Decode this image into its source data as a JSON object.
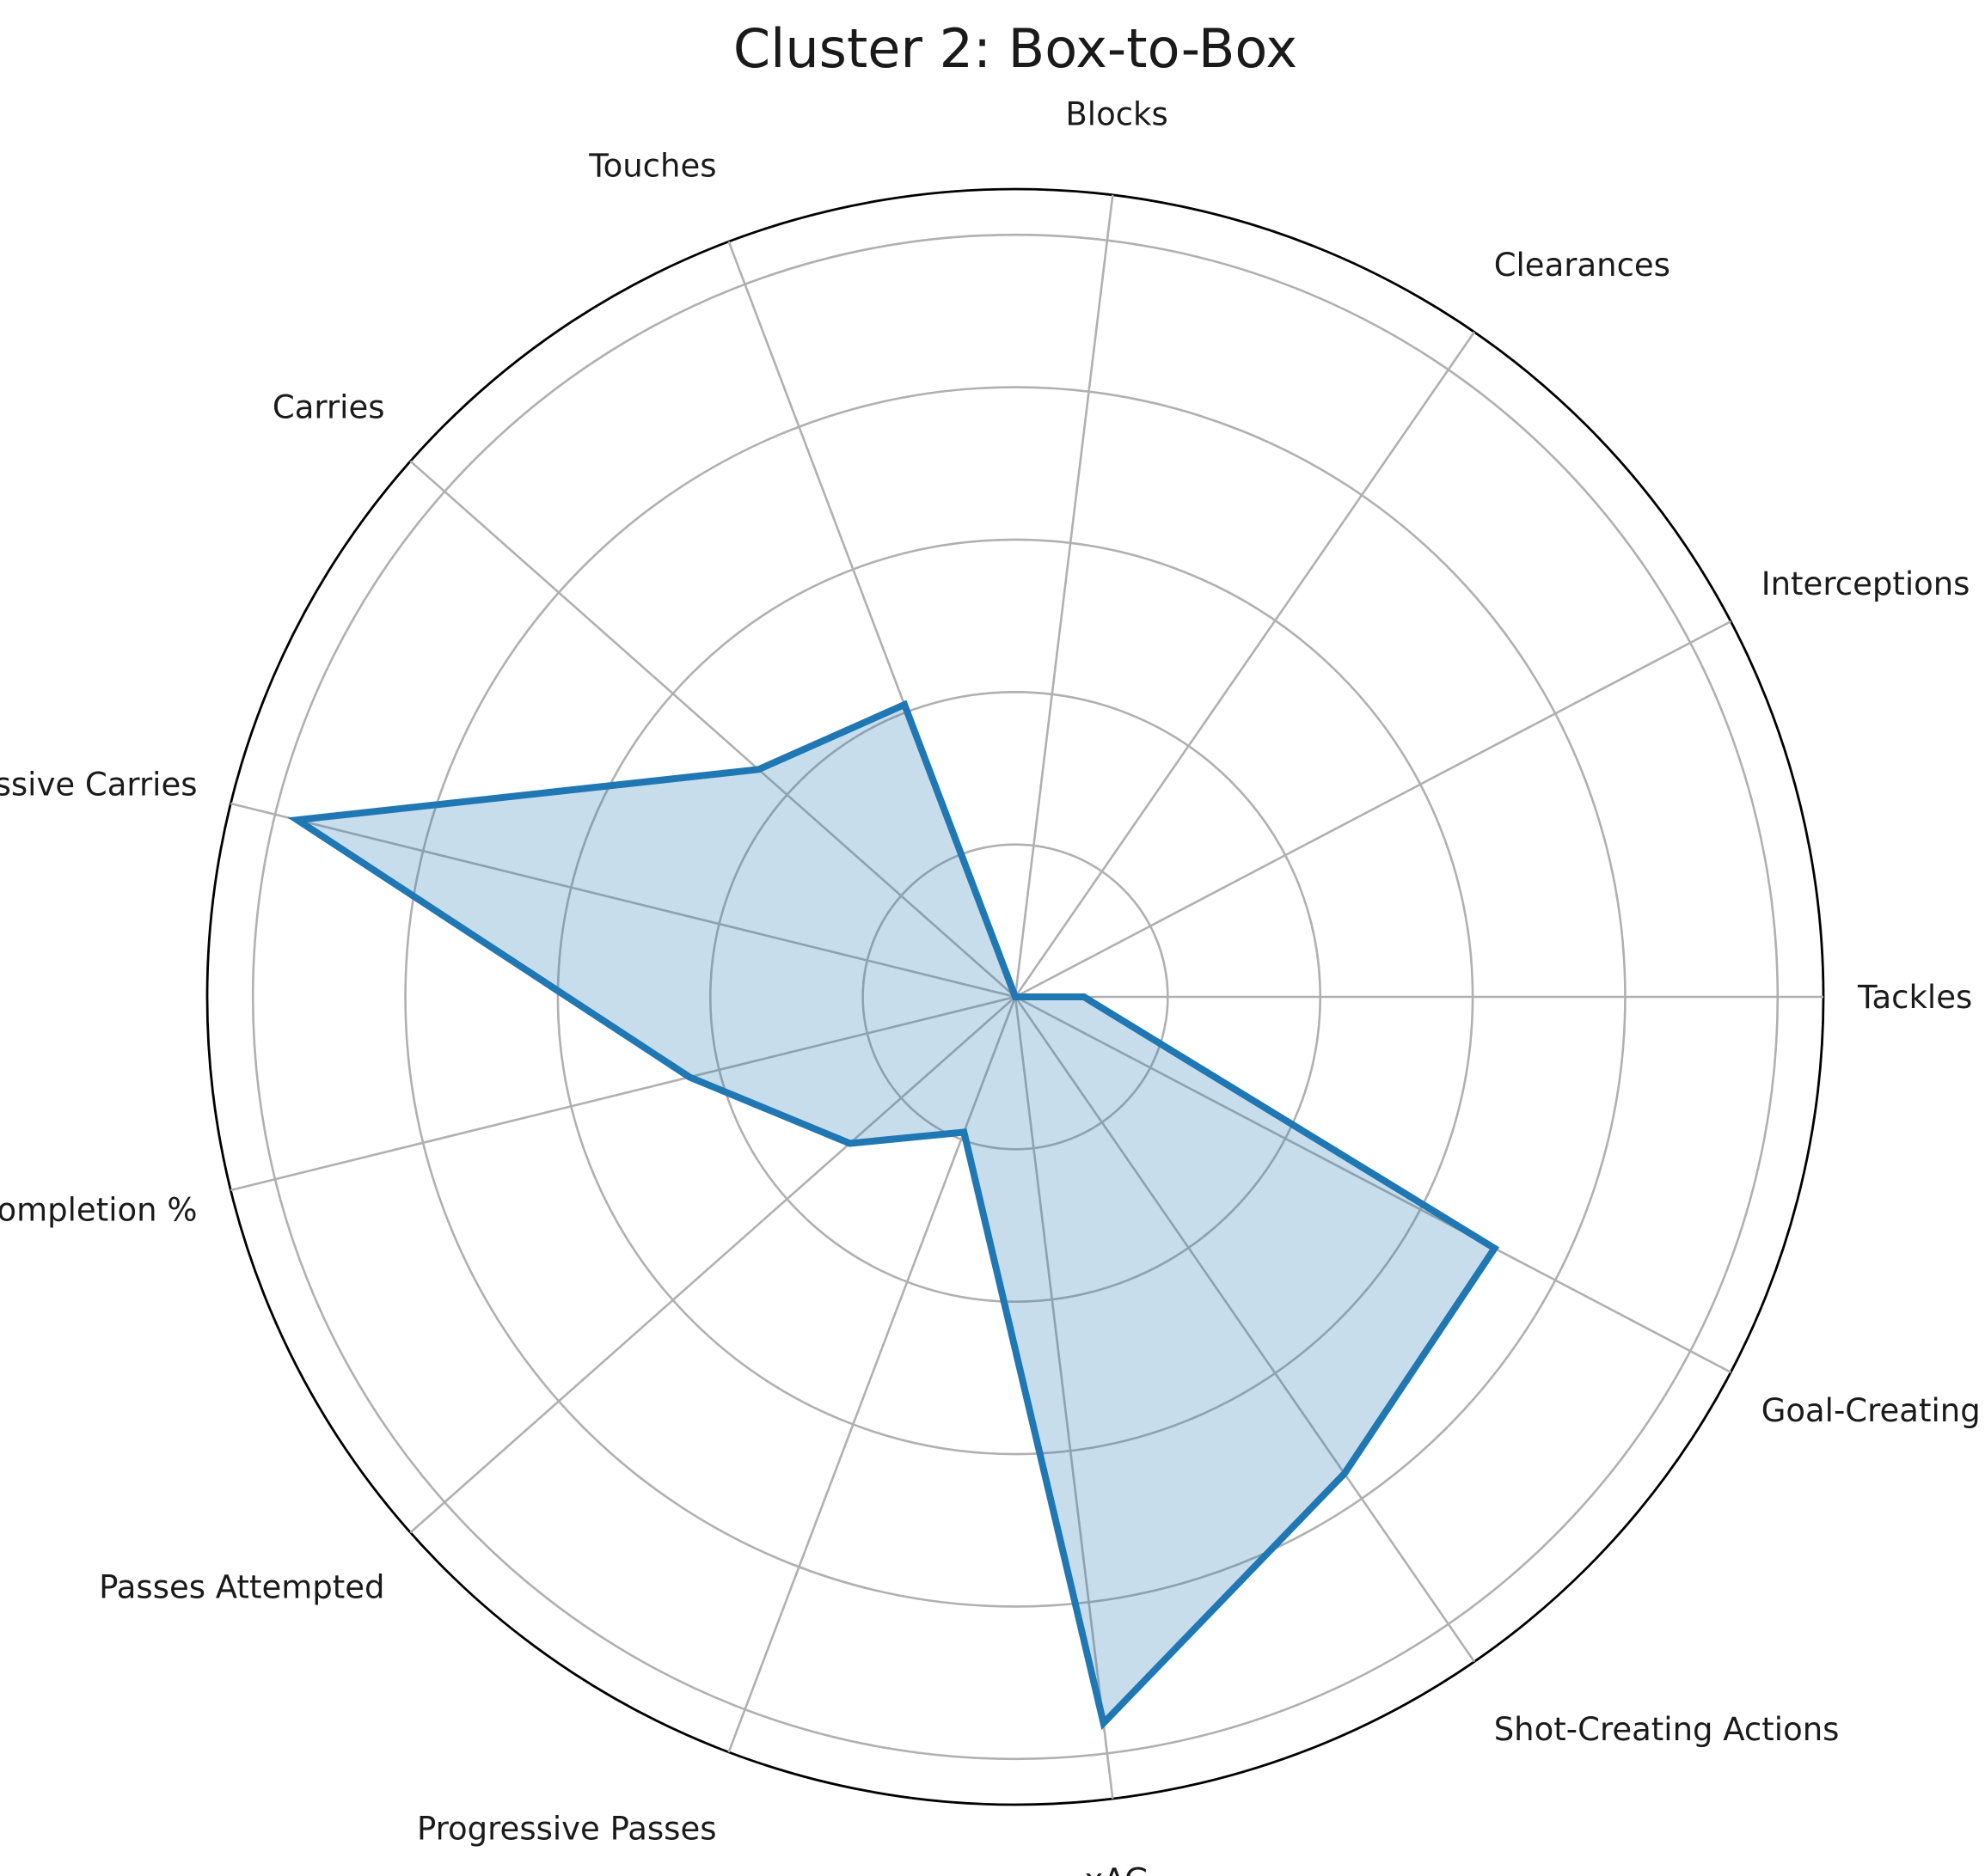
{
  "chart_data": {
    "type": "radar",
    "title": "Cluster 2: Box-to-Box",
    "categories": [
      "Tackles",
      "Interceptions",
      "Clearances",
      "Blocks",
      "Touches",
      "Carries",
      "Progressive Carries",
      "Pass Completion %",
      "Passes Attempted",
      "Progressive Passes",
      "xAG",
      "Shot-Creating Actions",
      "Goal-Creating Actions"
    ],
    "series": [
      {
        "values": [
          0.09,
          0.0,
          0.0,
          0.0,
          0.41,
          0.45,
          0.97,
          0.44,
          0.29,
          0.19,
          0.96,
          0.76,
          0.71
        ],
        "color": "#1f77b4",
        "fill_color": "#1f77b4",
        "fill_opacity": 0.25
      }
    ],
    "rlim": [
      0,
      1.06
    ],
    "r_grid": [
      0.2,
      0.4,
      0.6,
      0.8,
      1.0
    ],
    "grid": true,
    "grid_color": "#b0b0b0",
    "show_radial_tick_labels": false
  }
}
